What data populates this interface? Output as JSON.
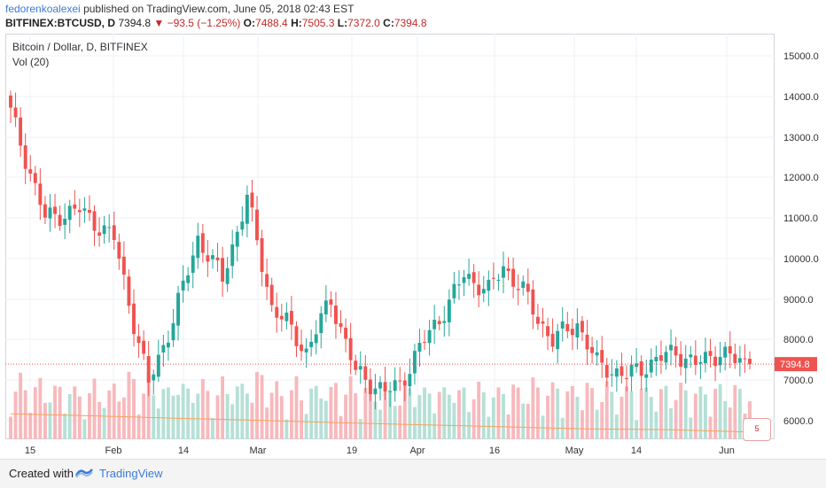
{
  "header": {
    "author": "fedorenkoalexei",
    "published_text": "published on TradingView.com, June 05, 2018 02:43 EST",
    "symbol": "BITFINEX:BTCUSD, D",
    "last": "7394.8",
    "change": "▼ −93.5 (−1.25%)",
    "open_label": "O:",
    "open": "7488.4",
    "high_label": "H:",
    "high": "7505.3",
    "low_label": "L:",
    "low": "7372.0",
    "close_label": "C:",
    "close": "7394.8"
  },
  "legend": {
    "title": "Bitcoin / Dollar, D, BITFINEX",
    "volume": "Vol (20)"
  },
  "footer": {
    "created_with": "Created with",
    "brand": "TradingView"
  },
  "badge": "5",
  "colors": {
    "up": "#26a69a",
    "down": "#ef5350",
    "up_vol": "#b6e0d6",
    "down_vol": "#f7b9bd",
    "ma": "#f5a25d",
    "price_line": "#ef5350",
    "grid": "#eef1f5"
  },
  "chart_data": {
    "type": "candlestick",
    "x_ticks": [
      "15",
      "Feb",
      "14",
      "Mar",
      "19",
      "Apr",
      "16",
      "May",
      "14",
      "Jun"
    ],
    "y_ticks": [
      "15000.0",
      "14000.0",
      "13000.0",
      "12000.0",
      "11000.0",
      "10000.0",
      "9000.0",
      "8000.0",
      "7000.0",
      "6000.0"
    ],
    "ylim": [
      5450,
      15350
    ],
    "last_price": 7394.8,
    "last_price_label": "7394.8",
    "anchors_days": [
      0,
      7,
      14,
      21,
      26,
      28,
      33,
      38,
      43,
      48,
      53,
      56,
      60,
      65,
      70,
      76,
      79,
      84,
      89,
      92,
      97,
      100,
      104,
      107,
      110,
      115,
      119,
      125,
      131,
      135,
      139,
      144,
      147,
      150
    ],
    "anchors_price": [
      13600,
      11000,
      11200,
      10500,
      7900,
      6900,
      8500,
      10500,
      9500,
      11500,
      8800,
      8400,
      7700,
      9000,
      7200,
      6700,
      6900,
      8000,
      8900,
      9600,
      9200,
      9800,
      9200,
      8500,
      8000,
      8400,
      7400,
      7100,
      7500,
      7700,
      7389,
      7700,
      7488,
      7394.8
    ],
    "volume_base": [
      1200,
      900,
      800,
      700,
      650,
      600,
      550,
      500,
      450,
      400
    ],
    "volume_ma": [
      6170,
      6120,
      6060,
      6010,
      5950,
      5900,
      5850,
      5800,
      5780,
      5720
    ]
  }
}
